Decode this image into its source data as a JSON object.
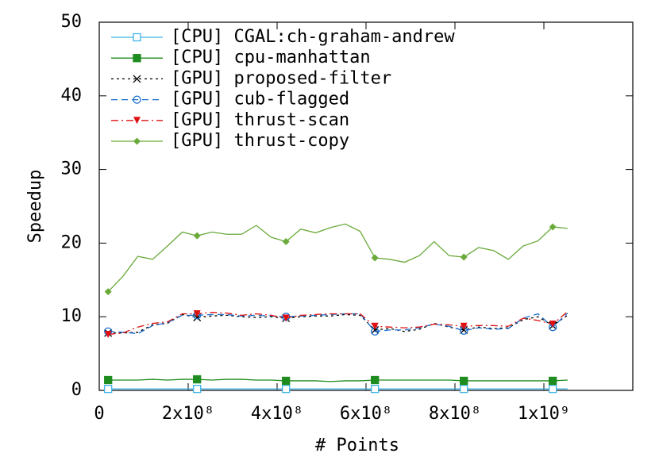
{
  "chart_data": {
    "type": "line",
    "xlabel": "# Points",
    "ylabel": "Speedup",
    "x": [
      20000000,
      53300000,
      86700000,
      120000000,
      153300000,
      186700000,
      220000000,
      253300000,
      286700000,
      320000000,
      353300000,
      386700000,
      420000000,
      453300000,
      486700000,
      520000000,
      553300000,
      586700000,
      620000000,
      653300000,
      686700000,
      720000000,
      753300000,
      786700000,
      820000000,
      853300000,
      886700000,
      920000000,
      953300000,
      986700000,
      1020000000,
      1053300000
    ],
    "xlim": [
      0,
      1200000000
    ],
    "xticks": [
      0,
      {
        "value": 200000000,
        "label": "2x10⁸"
      },
      {
        "value": 400000000,
        "label": "4x10⁸"
      },
      {
        "value": 600000000,
        "label": "6x10⁸"
      },
      {
        "value": 800000000,
        "label": "8x10⁸"
      },
      {
        "value": 1000000000,
        "label": "1x10⁹"
      }
    ],
    "ylim": [
      0,
      50
    ],
    "yticks": [
      0,
      10,
      20,
      30,
      40,
      50
    ],
    "legend": "top-left",
    "marker_every": 6,
    "series": [
      {
        "name": "[CPU] CGAL:ch-graham-andrew",
        "color": "#3fb4e6",
        "marker": "square-open",
        "dash": "solid",
        "values": [
          0.2,
          0.2,
          0.2,
          0.2,
          0.2,
          0.2,
          0.2,
          0.2,
          0.2,
          0.2,
          0.2,
          0.2,
          0.2,
          0.2,
          0.2,
          0.2,
          0.2,
          0.2,
          0.2,
          0.2,
          0.2,
          0.2,
          0.2,
          0.2,
          0.2,
          0.2,
          0.2,
          0.2,
          0.2,
          0.2,
          0.2,
          0.2
        ]
      },
      {
        "name": "[CPU] cpu-manhattan",
        "color": "#1e8c1e",
        "marker": "square-filled",
        "dash": "solid",
        "values": [
          1.4,
          1.4,
          1.4,
          1.5,
          1.4,
          1.5,
          1.5,
          1.4,
          1.5,
          1.5,
          1.4,
          1.4,
          1.3,
          1.3,
          1.3,
          1.2,
          1.3,
          1.3,
          1.4,
          1.4,
          1.4,
          1.4,
          1.4,
          1.4,
          1.3,
          1.3,
          1.3,
          1.3,
          1.3,
          1.3,
          1.3,
          1.4
        ]
      },
      {
        "name": "[GPU] proposed-filter",
        "color": "#000000",
        "marker": "cross",
        "dash": "dotted",
        "values": [
          7.8,
          7.8,
          7.9,
          8.9,
          9.1,
          10.3,
          9.9,
          10.1,
          10.2,
          10.0,
          9.9,
          10.0,
          9.8,
          10.0,
          10.1,
          10.1,
          10.3,
          10.2,
          8.2,
          8.4,
          8.0,
          8.3,
          9.1,
          8.6,
          8.2,
          8.6,
          8.4,
          8.5,
          9.6,
          10.0,
          8.8,
          10.2
        ]
      },
      {
        "name": "[GPU] cub-flagged",
        "color": "#1a6fd0",
        "marker": "circle-open",
        "dash": "dashed",
        "values": [
          8.0,
          7.9,
          7.7,
          8.8,
          9.2,
          10.2,
          10.2,
          10.3,
          10.3,
          10.1,
          10.2,
          10.1,
          10.0,
          10.1,
          10.2,
          10.3,
          10.4,
          10.4,
          8.0,
          8.2,
          8.2,
          8.5,
          9.0,
          8.7,
          8.1,
          8.5,
          8.3,
          8.4,
          9.8,
          10.4,
          8.6,
          10.5
        ]
      },
      {
        "name": "[GPU] thrust-scan",
        "color": "#e01010",
        "marker": "triangle-down",
        "dash": "dashdot",
        "values": [
          7.6,
          7.8,
          8.6,
          9.1,
          9.3,
          10.4,
          10.4,
          10.6,
          10.5,
          10.2,
          10.4,
          10.2,
          9.8,
          10.2,
          10.3,
          10.4,
          10.4,
          10.4,
          8.7,
          8.6,
          8.5,
          8.6,
          9.0,
          8.9,
          8.7,
          8.8,
          8.8,
          8.7,
          9.8,
          9.5,
          9.0,
          10.7
        ]
      },
      {
        "name": "[GPU] thrust-copy",
        "color": "#6aaa3a",
        "marker": "diamond",
        "dash": "solid",
        "values": [
          13.4,
          15.5,
          18.2,
          17.8,
          19.6,
          21.5,
          21.0,
          21.5,
          21.2,
          21.2,
          22.4,
          20.8,
          20.2,
          21.9,
          21.4,
          22.1,
          22.6,
          21.6,
          18.0,
          17.8,
          17.4,
          18.3,
          20.2,
          18.3,
          18.1,
          19.4,
          19.0,
          17.8,
          19.6,
          20.3,
          22.2,
          22.0
        ]
      }
    ]
  }
}
